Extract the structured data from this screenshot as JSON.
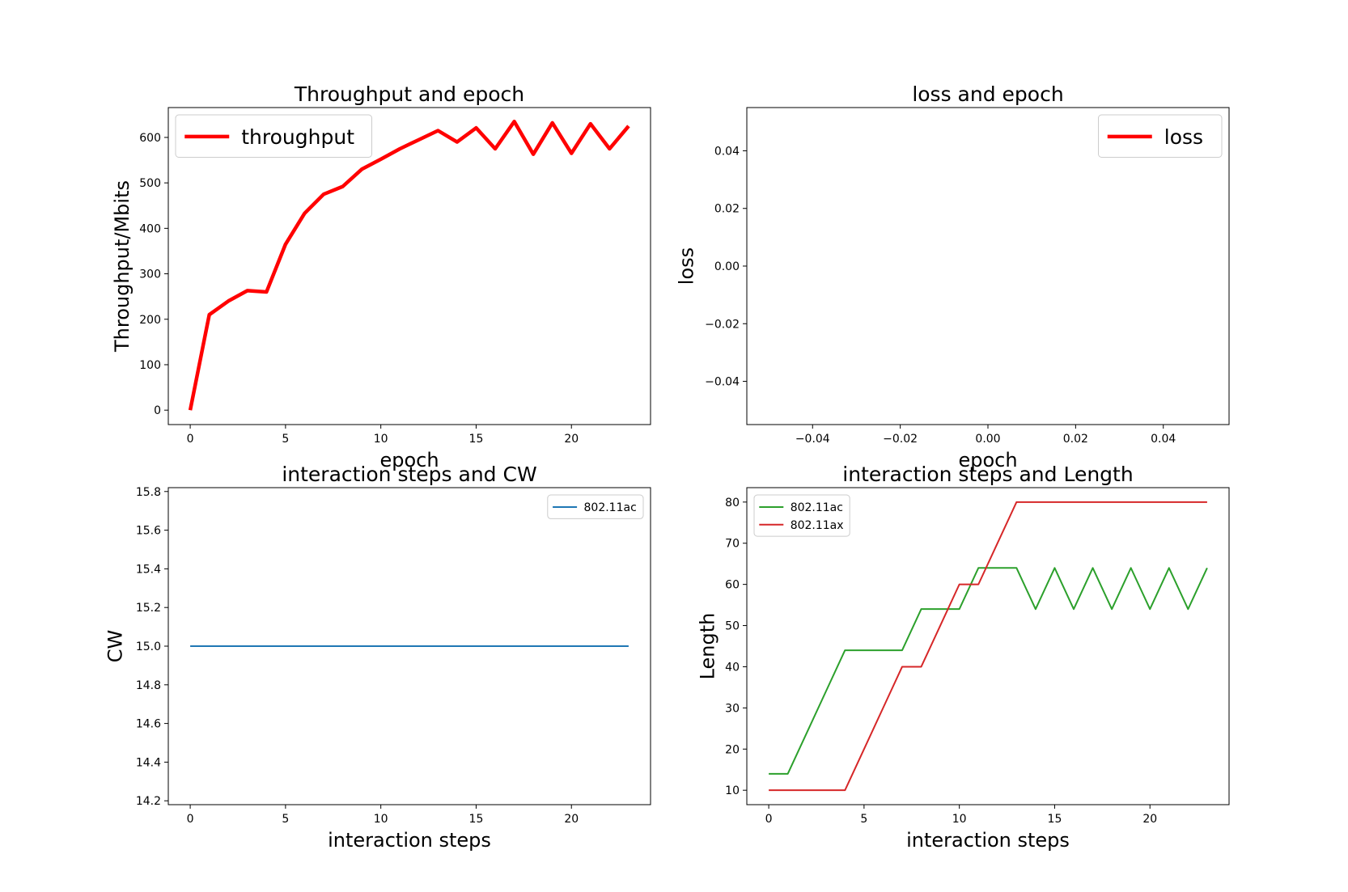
{
  "chart_data": [
    {
      "type": "line",
      "title": "Throughput and epoch",
      "xlabel": "epoch",
      "ylabel": "Throughput/Mbits",
      "xlim": [
        -1.15,
        24.15
      ],
      "ylim": [
        -31.7,
        665.7
      ],
      "xticks": [
        0,
        5,
        10,
        15,
        20
      ],
      "xtick_labels": [
        "0",
        "5",
        "10",
        "15",
        "20"
      ],
      "yticks": [
        0,
        100,
        200,
        300,
        400,
        500,
        600
      ],
      "ytick_labels": [
        "0",
        "100",
        "200",
        "300",
        "400",
        "500",
        "600"
      ],
      "grid": false,
      "legend": "upper-left",
      "series": [
        {
          "name": "throughput",
          "color": "#ff0000",
          "x": [
            0,
            1,
            2,
            3,
            4,
            5,
            6,
            7,
            8,
            9,
            10,
            11,
            12,
            13,
            14,
            15,
            16,
            17,
            18,
            19,
            20,
            21,
            22,
            23
          ],
          "y": [
            0,
            210,
            240,
            263,
            260,
            365,
            433,
            475,
            492,
            530,
            552,
            575,
            595,
            615,
            590,
            621,
            575,
            635,
            563,
            632,
            565,
            630,
            575,
            625
          ]
        }
      ]
    },
    {
      "type": "line",
      "title": "loss and epoch",
      "xlabel": "epoch",
      "ylabel": "loss",
      "xlim": [
        -0.055,
        0.055
      ],
      "ylim": [
        -0.055,
        0.055
      ],
      "xticks": [
        -0.04,
        -0.02,
        0,
        0.02,
        0.04
      ],
      "xtick_labels": [
        "−0.04",
        "−0.02",
        "0.00",
        "0.02",
        "0.04"
      ],
      "yticks": [
        -0.04,
        -0.02,
        0,
        0.02,
        0.04
      ],
      "ytick_labels": [
        "−0.04",
        "−0.02",
        "0.00",
        "0.02",
        "0.04"
      ],
      "grid": false,
      "legend": "upper-right",
      "series": [
        {
          "name": "loss",
          "color": "#ff0000",
          "x": [],
          "y": []
        }
      ]
    },
    {
      "type": "line",
      "title": "interaction steps and CW",
      "xlabel": "interaction steps",
      "ylabel": "CW",
      "xlim": [
        -1.15,
        24.15
      ],
      "ylim": [
        14.18,
        15.82
      ],
      "xticks": [
        0,
        5,
        10,
        15,
        20
      ],
      "xtick_labels": [
        "0",
        "5",
        "10",
        "15",
        "20"
      ],
      "yticks": [
        14.2,
        14.4,
        14.6,
        14.8,
        15.0,
        15.2,
        15.4,
        15.6,
        15.8
      ],
      "ytick_labels": [
        "14.2",
        "14.4",
        "14.6",
        "14.8",
        "15.0",
        "15.2",
        "15.4",
        "15.6",
        "15.8"
      ],
      "grid": false,
      "legend": "upper-right",
      "series": [
        {
          "name": "802.11ac",
          "color": "#1f77b4",
          "x": [
            0,
            1,
            2,
            3,
            4,
            5,
            6,
            7,
            8,
            9,
            10,
            11,
            12,
            13,
            14,
            15,
            16,
            17,
            18,
            19,
            20,
            21,
            22,
            23
          ],
          "y": [
            15,
            15,
            15,
            15,
            15,
            15,
            15,
            15,
            15,
            15,
            15,
            15,
            15,
            15,
            15,
            15,
            15,
            15,
            15,
            15,
            15,
            15,
            15,
            15
          ]
        }
      ]
    },
    {
      "type": "line",
      "title": "interaction steps and Length",
      "xlabel": "interaction steps",
      "ylabel": "Length",
      "xlim": [
        -1.15,
        24.15
      ],
      "ylim": [
        6.5,
        83.5
      ],
      "xticks": [
        0,
        5,
        10,
        15,
        20
      ],
      "xtick_labels": [
        "0",
        "5",
        "10",
        "15",
        "20"
      ],
      "yticks": [
        10,
        20,
        30,
        40,
        50,
        60,
        70,
        80
      ],
      "ytick_labels": [
        "10",
        "20",
        "30",
        "40",
        "50",
        "60",
        "70",
        "80"
      ],
      "grid": false,
      "legend": "upper-left",
      "series": [
        {
          "name": "802.11ac",
          "color": "#2ca02c",
          "x": [
            0,
            1,
            2,
            3,
            4,
            5,
            6,
            7,
            8,
            9,
            10,
            11,
            12,
            13,
            14,
            15,
            16,
            17,
            18,
            19,
            20,
            21,
            22,
            23
          ],
          "y": [
            14,
            14,
            24,
            34,
            44,
            44,
            44,
            44,
            54,
            54,
            54,
            64,
            64,
            64,
            54,
            64,
            54,
            64,
            54,
            64,
            54,
            64,
            54,
            64
          ]
        },
        {
          "name": "802.11ax",
          "color": "#d62728",
          "x": [
            0,
            1,
            2,
            3,
            4,
            5,
            6,
            7,
            8,
            9,
            10,
            11,
            12,
            13,
            14,
            15,
            16,
            17,
            18,
            19,
            20,
            21,
            22,
            23
          ],
          "y": [
            10,
            10,
            10,
            10,
            10,
            20,
            30,
            40,
            40,
            50,
            60,
            60,
            70,
            80,
            80,
            80,
            80,
            80,
            80,
            80,
            80,
            80,
            80,
            80
          ]
        }
      ]
    }
  ]
}
